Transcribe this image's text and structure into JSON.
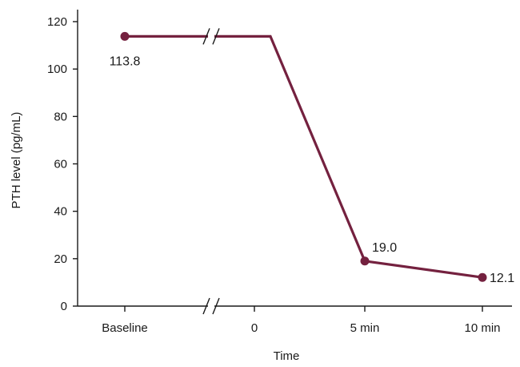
{
  "chart_data": {
    "type": "line",
    "title": "",
    "xlabel": "Time",
    "ylabel": "PTH level (pg/mL)",
    "categories": [
      "Baseline",
      "0",
      "5 min",
      "10 min"
    ],
    "ylim": [
      0,
      120
    ],
    "yticks": [
      0,
      20,
      40,
      60,
      80,
      100,
      120
    ],
    "axis_break": "between Baseline and 0",
    "grid": false,
    "legend": "none",
    "series": [
      {
        "color": "#74213f",
        "points": [
          {
            "x": "Baseline",
            "y": 113.8,
            "label": "113.8"
          },
          {
            "x": "0",
            "y": 113.8
          },
          {
            "x": "5 min",
            "y": 19.0,
            "label": "19.0"
          },
          {
            "x": "10 min",
            "y": 12.1,
            "label": "12.1"
          }
        ]
      }
    ]
  }
}
